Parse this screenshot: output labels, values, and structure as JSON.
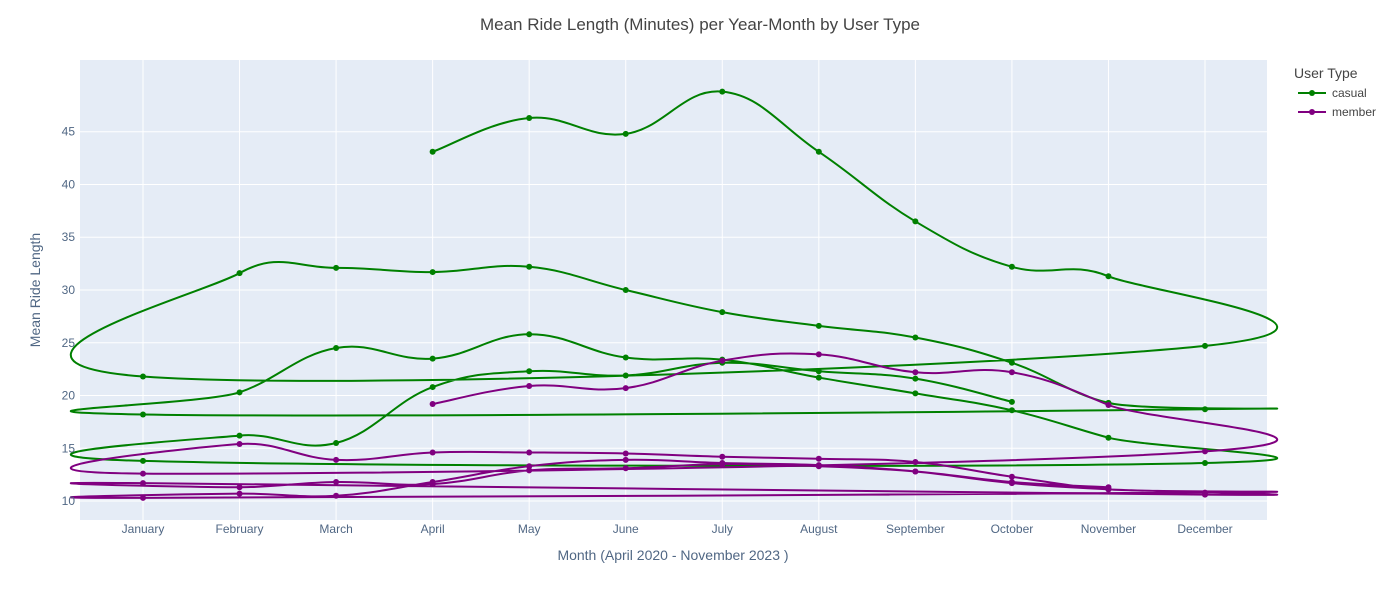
{
  "chart_data": {
    "type": "line",
    "title": "Mean Ride Length (Minutes) per Year-Month by User Type",
    "xlabel": "Month (April 2020 - November 2023 )",
    "ylabel": "Mean Ride Length",
    "categories": [
      "January",
      "February",
      "March",
      "April",
      "May",
      "June",
      "July",
      "August",
      "September",
      "October",
      "November",
      "December"
    ],
    "ylim": [
      8.2,
      51.8
    ],
    "yticks": [
      10,
      15,
      20,
      25,
      30,
      35,
      40,
      45
    ],
    "grid": true,
    "legend": {
      "title": "User Type",
      "placement": "top-right"
    },
    "series": [
      {
        "name": "casual",
        "color": "#008000",
        "points": [
          [
            "April",
            43.1
          ],
          [
            "May",
            46.3
          ],
          [
            "June",
            44.8
          ],
          [
            "July",
            48.8
          ],
          [
            "August",
            43.1
          ],
          [
            "September",
            36.5
          ],
          [
            "October",
            32.2
          ],
          [
            "November",
            31.3
          ],
          [
            "December",
            24.7
          ],
          [
            "January",
            21.8
          ],
          [
            "February",
            31.6
          ],
          [
            "March",
            32.1
          ],
          [
            "April",
            31.7
          ],
          [
            "May",
            32.2
          ],
          [
            "June",
            30.0
          ],
          [
            "July",
            27.9
          ],
          [
            "August",
            26.6
          ],
          [
            "September",
            25.5
          ],
          [
            "October",
            23.1
          ],
          [
            "November",
            19.3
          ],
          [
            "December",
            18.7
          ],
          [
            "January",
            18.2
          ],
          [
            "February",
            20.3
          ],
          [
            "March",
            24.5
          ],
          [
            "April",
            23.5
          ],
          [
            "May",
            25.8
          ],
          [
            "June",
            23.6
          ],
          [
            "July",
            23.4
          ],
          [
            "August",
            21.7
          ],
          [
            "September",
            20.2
          ],
          [
            "October",
            18.6
          ],
          [
            "November",
            16.0
          ],
          [
            "December",
            13.6
          ],
          [
            "January",
            13.8
          ],
          [
            "February",
            16.2
          ],
          [
            "March",
            15.5
          ],
          [
            "April",
            20.8
          ],
          [
            "May",
            22.3
          ],
          [
            "June",
            21.9
          ],
          [
            "July",
            23.1
          ],
          [
            "August",
            22.3
          ],
          [
            "September",
            21.6
          ],
          [
            "October",
            19.4
          ]
        ]
      },
      {
        "name": "member",
        "color": "#800080",
        "points": [
          [
            "April",
            19.2
          ],
          [
            "May",
            20.9
          ],
          [
            "June",
            20.7
          ],
          [
            "July",
            23.3
          ],
          [
            "August",
            23.9
          ],
          [
            "September",
            22.2
          ],
          [
            "October",
            22.2
          ],
          [
            "November",
            19.1
          ],
          [
            "December",
            14.7
          ],
          [
            "January",
            12.6
          ],
          [
            "February",
            15.4
          ],
          [
            "March",
            13.9
          ],
          [
            "April",
            14.6
          ],
          [
            "May",
            14.6
          ],
          [
            "June",
            14.5
          ],
          [
            "July",
            14.2
          ],
          [
            "August",
            14.0
          ],
          [
            "September",
            13.7
          ],
          [
            "October",
            12.3
          ],
          [
            "November",
            11.1
          ],
          [
            "December",
            10.8
          ],
          [
            "January",
            10.3
          ],
          [
            "February",
            10.7
          ],
          [
            "March",
            10.5
          ],
          [
            "April",
            11.8
          ],
          [
            "May",
            13.3
          ],
          [
            "June",
            13.9
          ],
          [
            "July",
            13.6
          ],
          [
            "August",
            13.4
          ],
          [
            "September",
            12.8
          ],
          [
            "October",
            11.7
          ],
          [
            "November",
            11.1
          ],
          [
            "December",
            10.6
          ],
          [
            "January",
            11.7
          ],
          [
            "February",
            11.3
          ],
          [
            "March",
            11.8
          ],
          [
            "April",
            11.6
          ],
          [
            "May",
            12.9
          ],
          [
            "June",
            13.1
          ],
          [
            "July",
            13.5
          ],
          [
            "August",
            13.3
          ],
          [
            "September",
            12.8
          ],
          [
            "October",
            11.8
          ],
          [
            "November",
            11.3
          ]
        ]
      }
    ]
  }
}
